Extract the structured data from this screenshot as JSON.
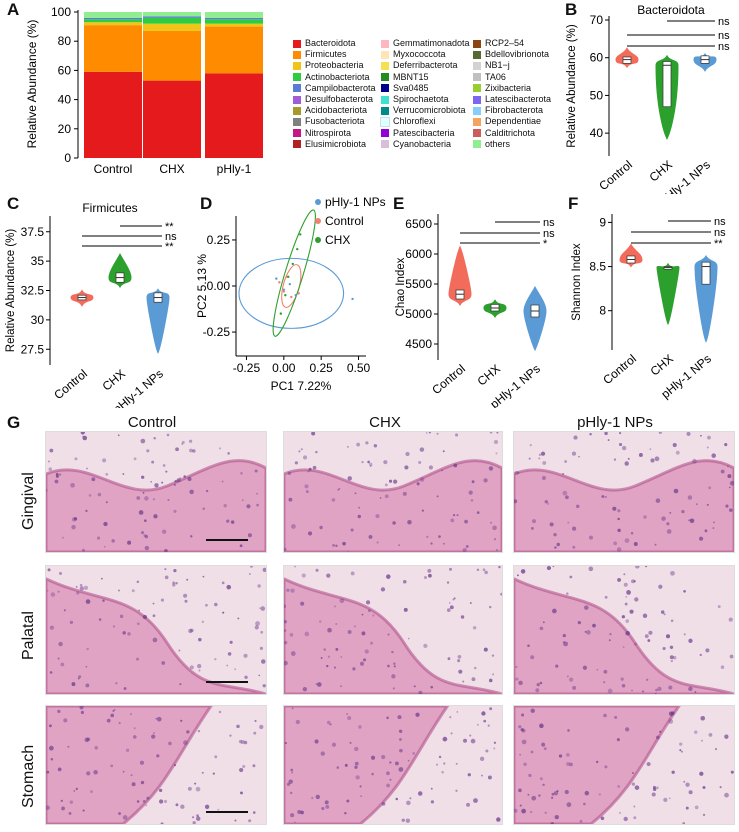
{
  "panel_letters": {
    "A": "A",
    "B": "B",
    "C": "C",
    "D": "D",
    "E": "E",
    "F": "F",
    "G": "G"
  },
  "stacked": {
    "ylabel": "Relative Abundance (%)",
    "yticks": [
      "0",
      "20",
      "40",
      "60",
      "80",
      "100"
    ],
    "categories": [
      "Control",
      "CHX",
      "pHly-1"
    ]
  },
  "legend": [
    {
      "name": "Bacteroidota",
      "color": "#e41a1c"
    },
    {
      "name": "Firmicutes",
      "color": "#ff8c00"
    },
    {
      "name": "Proteobacteria",
      "color": "#f0c419"
    },
    {
      "name": "Actinobacteriota",
      "color": "#2ecc40"
    },
    {
      "name": "Campilobacterota",
      "color": "#5b7bd5"
    },
    {
      "name": "Desulfobacterota",
      "color": "#a35cd6"
    },
    {
      "name": "Acidobacteriota",
      "color": "#a89a2a"
    },
    {
      "name": "Fusobacteriota",
      "color": "#808080"
    },
    {
      "name": "Nitrospirota",
      "color": "#c71585"
    },
    {
      "name": "Elusimicrobiota",
      "color": "#b22222"
    },
    {
      "name": "Gemmatimonadota",
      "color": "#ffb6c1"
    },
    {
      "name": "Myxococcota",
      "color": "#ffe4b5"
    },
    {
      "name": "Deferribacterota",
      "color": "#f5e050"
    },
    {
      "name": "MBNT15",
      "color": "#228b22"
    },
    {
      "name": "Sva0485",
      "color": "#00008b"
    },
    {
      "name": "Spirochaetota",
      "color": "#40e0d0"
    },
    {
      "name": "Verrucomicrobiota",
      "color": "#008b8b"
    },
    {
      "name": "Chloroflexi",
      "color": "#e0ffff"
    },
    {
      "name": "Patescibacteria",
      "color": "#9400d3"
    },
    {
      "name": "Cyanobacteria",
      "color": "#d8bfd8"
    },
    {
      "name": "RCP2–54",
      "color": "#8b4513"
    },
    {
      "name": "Bdellovibrionota",
      "color": "#556b2f"
    },
    {
      "name": "NB1−j",
      "color": "#d3d3d3"
    },
    {
      "name": "TA06",
      "color": "#c0c0c0"
    },
    {
      "name": "Zixibacteria",
      "color": "#9acd32"
    },
    {
      "name": "Latescibacterota",
      "color": "#7b68ee"
    },
    {
      "name": "Fibrobacterota",
      "color": "#87cefa"
    },
    {
      "name": "Dependentiae",
      "color": "#f4a460"
    },
    {
      "name": "Calditrichota",
      "color": "#cd5c5c"
    },
    {
      "name": "others",
      "color": "#90ee90"
    }
  ],
  "violins": {
    "B": {
      "title": "Bacteroidota",
      "ylabel": "Relative Abundance (%)",
      "yticks": [
        "40",
        "50",
        "60",
        "70"
      ],
      "xlabels": [
        "Control",
        "CHX",
        "pHly-1 NPs"
      ],
      "sig": [
        "ns",
        "ns",
        "ns"
      ]
    },
    "C": {
      "title": "Firmicutes",
      "ylabel": "Relative Abundance (%)",
      "yticks": [
        "27.5",
        "30",
        "32.5",
        "35",
        "37.5"
      ],
      "xlabels": [
        "Control",
        "CHX",
        "pHly-1 NPs"
      ],
      "sig": [
        "**",
        "ns",
        "**"
      ]
    },
    "E": {
      "title": "",
      "ylabel": "Chao Index",
      "yticks": [
        "4500",
        "5000",
        "5500",
        "6000",
        "6500"
      ],
      "xlabels": [
        "Control",
        "CHX",
        "pHly-1 NPs"
      ],
      "sig": [
        "ns",
        "ns",
        "*"
      ]
    },
    "F": {
      "title": "",
      "ylabel": "Shannon Index",
      "yticks": [
        "8",
        "8.5",
        "9"
      ],
      "xlabels": [
        "Control",
        "CHX",
        "pHly-1 NPs"
      ],
      "sig": [
        "ns",
        "ns",
        "**"
      ]
    }
  },
  "pca": {
    "xlabel": "PC1  7.22%",
    "ylabel": "PC2  5.13 %",
    "xticks": [
      "-0.25",
      "0.00",
      "0.25",
      "0.50"
    ],
    "yticks": [
      "-0.25",
      "0.00",
      "0.25"
    ],
    "legend": [
      {
        "name": "pHly-1 NPs",
        "color": "#5b9bd5"
      },
      {
        "name": "Control",
        "color": "#f08070"
      },
      {
        "name": "CHX",
        "color": "#2ca02c"
      }
    ]
  },
  "histology": {
    "columns": [
      "Control",
      "CHX",
      "pHly-1 NPs"
    ],
    "rows": [
      "Gingival",
      "Palatal",
      "Stomach"
    ]
  },
  "chart_data": [
    {
      "type": "bar",
      "title": "",
      "ylabel": "Relative Abundance (%)",
      "ylim": [
        0,
        100
      ],
      "categories": [
        "Control",
        "CHX",
        "pHly-1"
      ],
      "series": [
        {
          "name": "Bacteroidota",
          "values": [
            59,
            53,
            58
          ]
        },
        {
          "name": "Firmicutes",
          "values": [
            32,
            34,
            32
          ]
        },
        {
          "name": "Proteobacteria",
          "values": [
            2,
            5,
            2
          ]
        },
        {
          "name": "Actinobacteriota",
          "values": [
            2,
            4,
            3
          ]
        },
        {
          "name": "Campilobacterota",
          "values": [
            1,
            1,
            1
          ]
        },
        {
          "name": "others",
          "values": [
            4,
            3,
            4
          ]
        }
      ]
    },
    {
      "type": "violin",
      "title": "Bacteroidota",
      "ylabel": "Relative Abundance (%)",
      "ylim": [
        35,
        70
      ],
      "categories": [
        "Control",
        "CHX",
        "pHly-1 NPs"
      ],
      "series": [
        {
          "name": "Control",
          "color": "#f26b5b",
          "min": 57.5,
          "q1": 58.5,
          "median": 59.5,
          "q3": 60.2,
          "max": 62.5
        },
        {
          "name": "CHX",
          "color": "#2ca02c",
          "min": 38.5,
          "q1": 47,
          "median": 58,
          "q3": 59,
          "max": 60.5
        },
        {
          "name": "pHly-1 NPs",
          "color": "#5b9bd5",
          "min": 56.5,
          "q1": 58.5,
          "median": 59.5,
          "q3": 60.5,
          "max": 61
        }
      ]
    },
    {
      "type": "violin",
      "title": "Firmicutes",
      "ylabel": "Relative Abundance (%)",
      "ylim": [
        26.5,
        38.5
      ],
      "categories": [
        "Control",
        "CHX",
        "pHly-1 NPs"
      ],
      "series": [
        {
          "name": "Control",
          "color": "#f26b5b",
          "min": 31.2,
          "q1": 31.7,
          "median": 31.9,
          "q3": 32.1,
          "max": 32.5
        },
        {
          "name": "CHX",
          "color": "#2ca02c",
          "min": 32.8,
          "q1": 33.2,
          "median": 33.6,
          "q3": 34.0,
          "max": 35.6
        },
        {
          "name": "pHly-1 NPs",
          "color": "#5b9bd5",
          "min": 27.2,
          "q1": 31.5,
          "median": 31.9,
          "q3": 32.3,
          "max": 32.6
        }
      ]
    },
    {
      "type": "scatter",
      "title": "",
      "xlabel": "PC1  7.22%",
      "ylabel": "PC2  5.13 %",
      "xlim": [
        -0.32,
        0.55
      ],
      "ylim": [
        -0.38,
        0.38
      ],
      "series": [
        {
          "name": "pHly-1 NPs",
          "color": "#5b9bd5",
          "x": [
            -0.05,
            0.0,
            0.04,
            0.08,
            0.46
          ],
          "y": [
            0.04,
            -0.02,
            0.01,
            -0.05,
            -0.07
          ]
        },
        {
          "name": "Control",
          "color": "#f08070",
          "x": [
            -0.03,
            0.0,
            0.02,
            0.05,
            0.1
          ],
          "y": [
            0.02,
            -0.03,
            0.05,
            -0.06,
            -0.04
          ]
        },
        {
          "name": "CHX",
          "color": "#2ca02c",
          "x": [
            -0.02,
            0.01,
            0.03,
            0.06,
            0.09,
            0.11
          ],
          "y": [
            -0.15,
            -0.05,
            0.05,
            0.12,
            0.2,
            0.28
          ]
        }
      ]
    },
    {
      "type": "violin",
      "title": "",
      "ylabel": "Chao Index",
      "ylim": [
        4300,
        6600
      ],
      "categories": [
        "Control",
        "CHX",
        "pHly-1 NPs"
      ],
      "series": [
        {
          "name": "Control",
          "color": "#f26b5b",
          "min": 5150,
          "q1": 5250,
          "median": 5330,
          "q3": 5400,
          "max": 6120
        },
        {
          "name": "CHX",
          "color": "#2ca02c",
          "min": 4950,
          "q1": 5050,
          "median": 5100,
          "q3": 5160,
          "max": 5230
        },
        {
          "name": "pHly-1 NPs",
          "color": "#5b9bd5",
          "min": 4400,
          "q1": 4950,
          "median": 5050,
          "q3": 5150,
          "max": 5450
        }
      ]
    },
    {
      "type": "violin",
      "title": "",
      "ylabel": "Shannon Index",
      "ylim": [
        7.6,
        9.05
      ],
      "categories": [
        "Control",
        "CHX",
        "pHly-1 NPs"
      ],
      "series": [
        {
          "name": "Control",
          "color": "#f26b5b",
          "min": 8.5,
          "q1": 8.54,
          "median": 8.58,
          "q3": 8.62,
          "max": 8.75
        },
        {
          "name": "CHX",
          "color": "#2ca02c",
          "min": 7.85,
          "q1": 8.47,
          "median": 8.49,
          "q3": 8.5,
          "max": 8.53
        },
        {
          "name": "pHly-1 NPs",
          "color": "#5b9bd5",
          "min": 7.65,
          "q1": 8.3,
          "median": 8.5,
          "q3": 8.55,
          "max": 8.62
        }
      ]
    }
  ]
}
